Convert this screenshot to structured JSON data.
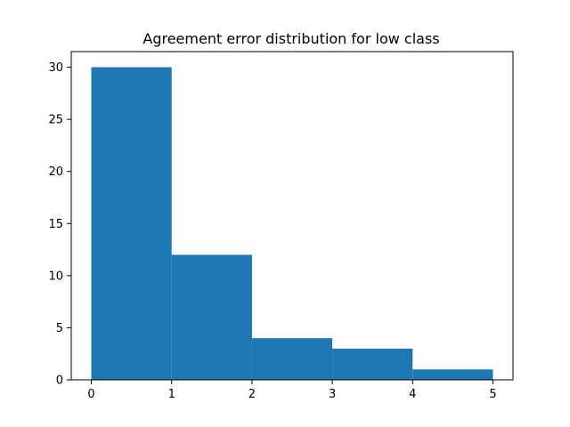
{
  "chart_data": {
    "type": "bar",
    "title": "Agreement error distribution for low class",
    "xlabel": "",
    "ylabel": "",
    "bins": [
      {
        "x0": 0,
        "x1": 1,
        "value": 30
      },
      {
        "x0": 1,
        "x1": 2,
        "value": 12
      },
      {
        "x0": 2,
        "x1": 3,
        "value": 4
      },
      {
        "x0": 3,
        "x1": 4,
        "value": 3
      },
      {
        "x0": 4,
        "x1": 5,
        "value": 1
      }
    ],
    "xlim": [
      -0.25,
      5.25
    ],
    "ylim": [
      0,
      31.5
    ],
    "x_ticks": [
      0,
      1,
      2,
      3,
      4,
      5
    ],
    "y_ticks": [
      0,
      5,
      10,
      15,
      20,
      25,
      30
    ],
    "grid": false,
    "colors": {
      "bar": "#1f77b4",
      "axis": "#000000",
      "background": "#ffffff"
    }
  }
}
